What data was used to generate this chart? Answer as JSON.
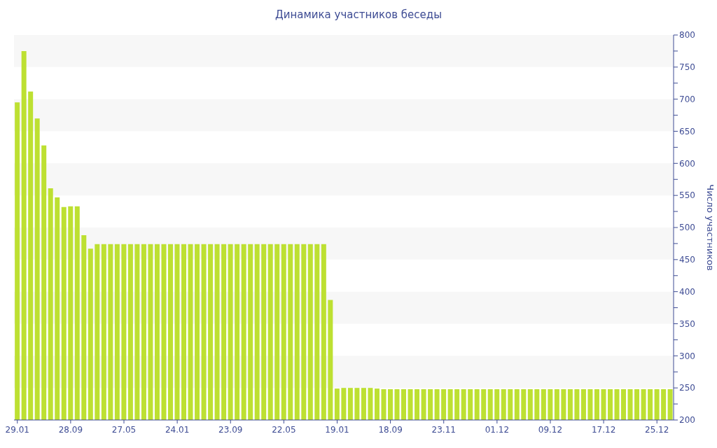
{
  "chart_data": {
    "type": "bar",
    "title": "Динамика участников беседы",
    "ylabel": "Число участников",
    "categories": [
      "29.01",
      null,
      null,
      null,
      null,
      null,
      null,
      null,
      "28.09",
      null,
      null,
      null,
      null,
      null,
      null,
      null,
      "27.05",
      null,
      null,
      null,
      null,
      null,
      null,
      null,
      "24.01",
      null,
      null,
      null,
      null,
      null,
      null,
      null,
      "23.09",
      null,
      null,
      null,
      null,
      null,
      null,
      null,
      "22.05",
      null,
      null,
      null,
      null,
      null,
      null,
      null,
      "19.01",
      null,
      null,
      null,
      null,
      null,
      null,
      null,
      "18.09",
      null,
      null,
      null,
      null,
      null,
      null,
      null,
      "23.11",
      null,
      null,
      null,
      null,
      null,
      null,
      null,
      "01.12",
      null,
      null,
      null,
      null,
      null,
      null,
      null,
      "09.12",
      null,
      null,
      null,
      null,
      null,
      null,
      null,
      "17.12",
      null,
      null,
      null,
      null,
      null,
      null,
      null,
      "25.12",
      null,
      null
    ],
    "values": [
      695,
      775,
      712,
      670,
      628,
      561,
      547,
      532,
      533,
      533,
      488,
      467,
      474,
      474,
      474,
      474,
      474,
      474,
      474,
      474,
      474,
      474,
      474,
      474,
      474,
      474,
      474,
      474,
      474,
      474,
      474,
      474,
      474,
      474,
      474,
      474,
      474,
      474,
      474,
      474,
      474,
      474,
      474,
      474,
      474,
      474,
      474,
      387,
      249,
      250,
      250,
      250,
      250,
      250,
      249,
      248,
      248,
      248,
      248,
      248,
      248,
      248,
      248,
      248,
      248,
      248,
      248,
      248,
      248,
      248,
      248,
      248,
      248,
      248,
      248,
      248,
      248,
      248,
      248,
      248,
      248,
      248,
      248,
      248,
      248,
      248,
      248,
      248,
      248,
      248,
      248,
      248,
      248,
      248,
      248,
      248,
      248,
      248,
      248
    ],
    "color": "#bde032",
    "ylim": [
      200,
      800
    ],
    "yticks": [
      200,
      {
        "value": 225,
        "label": null
      },
      250,
      {
        "value": 275,
        "label": null
      },
      300,
      {
        "value": 325,
        "label": null
      },
      350,
      {
        "value": 375,
        "label": null
      },
      400,
      {
        "value": 425,
        "label": null
      },
      450,
      {
        "value": 475,
        "label": null
      },
      500,
      {
        "value": 525,
        "label": null
      },
      550,
      {
        "value": 575,
        "label": null
      },
      600,
      {
        "value": 625,
        "label": null
      },
      650,
      {
        "value": 675,
        "label": null
      },
      700,
      {
        "value": 725,
        "label": null
      },
      750,
      {
        "value": 775,
        "label": null
      },
      800
    ],
    "bands": [
      {
        "axis": "y",
        "from": 250,
        "to": 300,
        "color": "#f7f7f7"
      },
      {
        "axis": "y",
        "from": 350,
        "to": 400,
        "color": "#f7f7f7"
      },
      {
        "axis": "y",
        "from": 450,
        "to": 500,
        "color": "#f7f7f7"
      },
      {
        "axis": "y",
        "from": 550,
        "to": 600,
        "color": "#f7f7f7"
      },
      {
        "axis": "y",
        "from": 650,
        "to": 700,
        "color": "#f7f7f7"
      },
      {
        "axis": "y",
        "from": 750,
        "to": 800,
        "color": "#f7f7f7"
      }
    ],
    "legend": false
  }
}
